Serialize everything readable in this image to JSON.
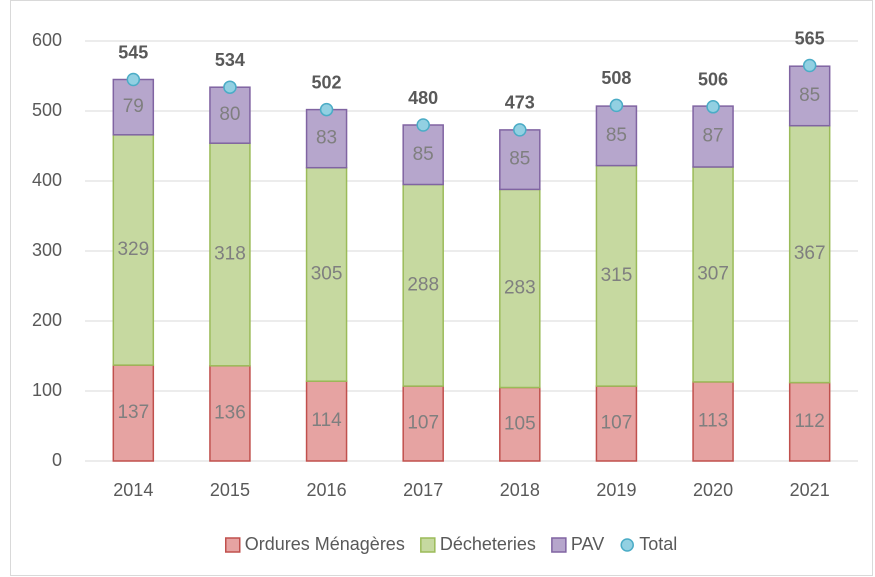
{
  "chart_data": {
    "type": "bar",
    "stacked": true,
    "categories": [
      "2014",
      "2015",
      "2016",
      "2017",
      "2018",
      "2019",
      "2020",
      "2021"
    ],
    "series": [
      {
        "name": "Ordures Ménagères",
        "color": "#e6a3a2",
        "edge": "#c0504d",
        "values": [
          137,
          136,
          114,
          107,
          105,
          107,
          113,
          112
        ]
      },
      {
        "name": "Décheteries",
        "color": "#c6d9a0",
        "edge": "#9bbb59",
        "values": [
          329,
          318,
          305,
          288,
          283,
          315,
          307,
          367
        ]
      },
      {
        "name": "PAV",
        "color": "#b6a6cc",
        "edge": "#8064a2",
        "values": [
          79,
          80,
          83,
          85,
          85,
          85,
          87,
          85
        ]
      },
      {
        "name": "Total",
        "type": "marker",
        "color": "#92d0e2",
        "edge": "#4bacc6",
        "values": [
          545,
          534,
          502,
          480,
          473,
          508,
          506,
          565
        ]
      }
    ],
    "ylim": [
      0,
      600
    ],
    "yticks": [
      0,
      100,
      200,
      300,
      400,
      500,
      600
    ],
    "grid": true,
    "legend": "bottom"
  }
}
